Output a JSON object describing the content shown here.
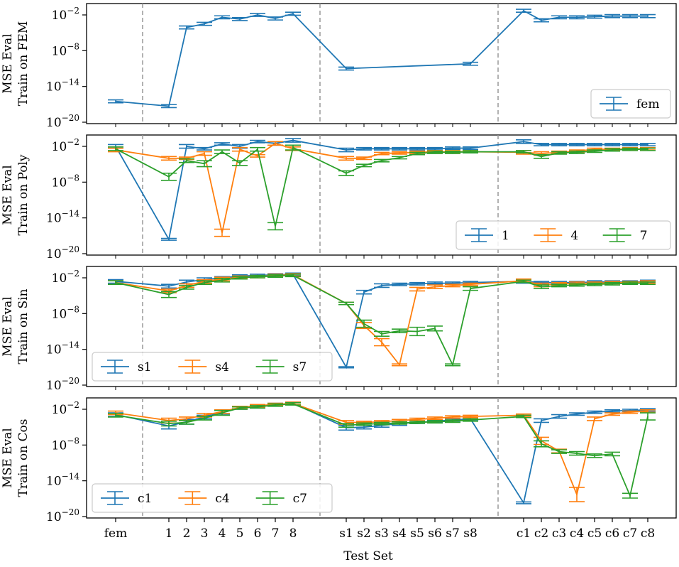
{
  "figure": {
    "xlabel": "Test Set",
    "categories": [
      "fem",
      "1",
      "2",
      "3",
      "4",
      "5",
      "6",
      "7",
      "8",
      "s1",
      "s2",
      "s3",
      "s4",
      "s5",
      "s6",
      "s7",
      "s8",
      "c1",
      "c2",
      "c3",
      "c4",
      "c5",
      "c6",
      "c7",
      "c8"
    ],
    "colors": {
      "blue": "#1f77b4",
      "orange": "#ff7f0e",
      "green": "#2ca02c",
      "divider": "#999999"
    }
  },
  "chart_data": [
    {
      "type": "line",
      "yscale": "log",
      "ylim_exp": [
        -20,
        0
      ],
      "ytick_exps": [
        -2,
        -8,
        -14,
        -20
      ],
      "ylabel_lines": [
        "MSE Eval",
        "Train on FEM"
      ],
      "legend_location": "lower-right",
      "legend_columns": 1,
      "series": [
        {
          "name": "fem",
          "color": "blue",
          "log10_values": [
            -16.5,
            null,
            null,
            null,
            null,
            null,
            null,
            null,
            null,
            -11.0,
            null,
            null,
            null,
            null,
            null,
            null,
            -10.2,
            -1.3,
            -2.9,
            -2.4,
            -2.4,
            -2.3,
            -2.2,
            -2.2,
            -2.2
          ],
          "log10_err": [
            0.15,
            null,
            null,
            null,
            null,
            null,
            null,
            null,
            null,
            0.1,
            null,
            null,
            null,
            null,
            null,
            null,
            0.1,
            0.3,
            0.6,
            0.4,
            0.3,
            0.2,
            0.2,
            0.2,
            0.2
          ],
          "custom_points": [
            [
              0,
              -16.5,
              0.15
            ],
            [
              2.65,
              -17.3,
              0.3
            ],
            [
              3.65,
              -4.1,
              0.2
            ],
            [
              4.65,
              -3.5,
              0.3
            ],
            [
              5.65,
              -2.4,
              0.2
            ],
            [
              6.65,
              -2.7,
              0.3
            ],
            [
              7.65,
              -2.0,
              0.2
            ],
            [
              8.65,
              -2.6,
              0.3
            ],
            [
              9.65,
              -1.8,
              0.2
            ]
          ],
          "x_offsets_note": "fem test-set positions"
        }
      ],
      "fem_values": {
        "fem": -16.5,
        "1": -17.3,
        "2": -4.1,
        "3": -3.5,
        "4": -2.4,
        "5": -2.7,
        "6": -2.0,
        "7": -2.6,
        "8": -1.8,
        "s1": -11.0,
        "s8": -10.2,
        "c1": -1.3,
        "c2": -2.9,
        "c3": -2.4,
        "c4": -2.4,
        "c5": -2.3,
        "c6": -2.2,
        "c7": -2.2,
        "c8": -2.2
      }
    },
    {
      "type": "line",
      "yscale": "log",
      "ylim_exp": [
        -20,
        0
      ],
      "ytick_exps": [
        -2,
        -8,
        -14,
        -20
      ],
      "ylabel_lines": [
        "MSE Eval",
        "Train on Poly"
      ],
      "legend_location": "lower-right",
      "legend_columns": 3,
      "series": [
        {
          "name": "1",
          "color": "blue",
          "values": [
            -2.0,
            -17.6,
            -2.0,
            -2.4,
            -1.6,
            -2.0,
            -1.2,
            -1.5,
            -1.0,
            -2.6,
            -2.4,
            -2.4,
            -2.4,
            -2.4,
            -2.4,
            -2.3,
            -2.3,
            -1.2,
            -1.7,
            -1.7,
            -1.7,
            -1.7,
            -1.7,
            -1.7,
            -1.7
          ],
          "err": [
            0.3,
            0.15,
            0.3,
            0.2,
            0.2,
            0.3,
            0.2,
            0.3,
            0.3,
            0.3,
            0.2,
            0.2,
            0.2,
            0.2,
            0.2,
            0.2,
            0.2,
            0.3,
            0.2,
            0.2,
            0.2,
            0.2,
            0.2,
            0.2,
            0.2
          ]
        },
        {
          "name": "4",
          "color": "orange",
          "values": [
            -2.6,
            -4.0,
            -4.0,
            -3.2,
            -16.5,
            -2.5,
            -3.6,
            -1.5,
            -2.4,
            -4.0,
            -4.0,
            -3.2,
            -3.1,
            -3.0,
            -2.9,
            -2.9,
            -2.9,
            -3.0,
            -3.2,
            -3.0,
            -2.8,
            -2.5,
            -2.5,
            -2.4,
            -2.4
          ],
          "err": [
            0.3,
            0.3,
            0.2,
            0.3,
            0.6,
            0.3,
            0.2,
            0.3,
            0.3,
            0.3,
            0.2,
            0.2,
            0.2,
            0.2,
            0.2,
            0.2,
            0.2,
            0.3,
            0.3,
            0.2,
            0.2,
            0.2,
            0.2,
            0.2,
            0.2
          ]
        },
        {
          "name": "7",
          "color": "green",
          "values": [
            -2.4,
            -7.1,
            -4.4,
            -4.9,
            -2.9,
            -4.8,
            -2.5,
            -15.4,
            -2.2,
            -6.5,
            -5.2,
            -4.4,
            -3.9,
            -3.2,
            -3.0,
            -3.0,
            -2.9,
            -2.9,
            -3.7,
            -3.1,
            -3.0,
            -2.8,
            -2.6,
            -2.5,
            -2.5
          ],
          "err": [
            0.3,
            0.6,
            0.3,
            0.5,
            0.3,
            0.4,
            0.3,
            0.6,
            0.4,
            0.4,
            0.2,
            0.2,
            0.2,
            0.2,
            0.2,
            0.2,
            0.2,
            0.2,
            0.3,
            0.2,
            0.2,
            0.2,
            0.2,
            0.2,
            0.2
          ]
        }
      ]
    },
    {
      "type": "line",
      "yscale": "log",
      "ylim_exp": [
        -20,
        0
      ],
      "ytick_exps": [
        -2,
        -8,
        -14,
        -20
      ],
      "ylabel_lines": [
        "MSE Eval",
        "Train on Sin"
      ],
      "legend_location": "lower-left",
      "legend_columns": 3,
      "series": [
        {
          "name": "s1",
          "color": "blue",
          "values": [
            -2.6,
            -3.4,
            -2.7,
            -2.3,
            -2.0,
            -1.7,
            -1.6,
            -1.5,
            -1.4,
            -17.0,
            -4.4,
            -3.3,
            -3.1,
            -3.0,
            -2.9,
            -2.9,
            -2.8,
            -2.6,
            -2.8,
            -2.8,
            -2.8,
            -2.7,
            -2.7,
            -2.7,
            -2.6
          ],
          "err": [
            0.3,
            0.3,
            0.3,
            0.3,
            0.2,
            0.2,
            0.2,
            0.2,
            0.2,
            0.1,
            0.3,
            0.3,
            0.2,
            0.2,
            0.2,
            0.2,
            0.2,
            0.3,
            0.2,
            0.2,
            0.2,
            0.2,
            0.2,
            0.2,
            0.2
          ]
        },
        {
          "name": "s4",
          "color": "orange",
          "values": [
            -2.8,
            -4.2,
            -3.3,
            -2.6,
            -2.2,
            -1.9,
            -1.8,
            -1.6,
            -1.5,
            -6.3,
            -10.0,
            -12.8,
            -16.6,
            -3.9,
            -3.5,
            -3.3,
            -3.1,
            -2.5,
            -3.2,
            -3.0,
            -2.9,
            -2.9,
            -2.8,
            -2.8,
            -2.7
          ],
          "err": [
            0.3,
            0.3,
            0.3,
            0.3,
            0.3,
            0.2,
            0.2,
            0.2,
            0.2,
            0.2,
            0.5,
            0.6,
            0.15,
            0.3,
            0.3,
            0.2,
            0.2,
            0.3,
            0.3,
            0.2,
            0.2,
            0.2,
            0.2,
            0.2,
            0.2
          ]
        },
        {
          "name": "s7",
          "color": "green",
          "values": [
            -2.8,
            -4.8,
            -3.6,
            -2.8,
            -2.4,
            -2.0,
            -1.8,
            -1.7,
            -1.6,
            -6.3,
            -9.7,
            -11.4,
            -10.9,
            -11.0,
            -10.5,
            -16.6,
            -3.8,
            -2.6,
            -3.5,
            -3.3,
            -3.2,
            -3.1,
            -3.0,
            -2.9,
            -2.9
          ],
          "err": [
            0.3,
            0.5,
            0.3,
            0.3,
            0.3,
            0.2,
            0.2,
            0.2,
            0.2,
            0.2,
            0.6,
            0.4,
            0.3,
            0.7,
            0.4,
            0.15,
            0.3,
            0.2,
            0.3,
            0.2,
            0.2,
            0.2,
            0.2,
            0.2,
            0.2
          ]
        }
      ]
    },
    {
      "type": "line",
      "yscale": "log",
      "ylim_exp": [
        -20,
        0
      ],
      "ytick_exps": [
        -2,
        -8,
        -14,
        -20
      ],
      "ylabel_lines": [
        "MSE Eval",
        "Train on Cos"
      ],
      "legend_location": "lower-left",
      "legend_columns": 3,
      "series": [
        {
          "name": "c1",
          "color": "blue",
          "values": [
            -2.9,
            -4.8,
            -4.1,
            -3.3,
            -2.5,
            -1.8,
            -1.5,
            -1.2,
            -1.0,
            -5.1,
            -5.0,
            -4.7,
            -4.4,
            -4.2,
            -4.0,
            -3.8,
            -3.6,
            -17.7,
            -3.9,
            -3.2,
            -2.8,
            -2.5,
            -2.3,
            -2.2,
            -2.1
          ],
          "err": [
            0.3,
            0.5,
            0.4,
            0.3,
            0.3,
            0.2,
            0.3,
            0.2,
            0.2,
            0.4,
            0.3,
            0.3,
            0.3,
            0.2,
            0.2,
            0.2,
            0.2,
            0.15,
            0.3,
            0.3,
            0.2,
            0.2,
            0.2,
            0.2,
            0.2
          ]
        },
        {
          "name": "c4",
          "color": "orange",
          "values": [
            -2.6,
            -3.9,
            -3.6,
            -3.0,
            -2.4,
            -1.7,
            -1.4,
            -1.2,
            -1.0,
            -4.2,
            -4.2,
            -4.1,
            -3.9,
            -3.7,
            -3.5,
            -3.3,
            -3.2,
            -3.0,
            -7.3,
            -9.0,
            -16.3,
            -3.6,
            -2.8,
            -2.5,
            -2.3
          ],
          "err": [
            0.3,
            0.4,
            0.3,
            0.3,
            0.3,
            0.2,
            0.2,
            0.2,
            0.2,
            0.3,
            0.2,
            0.2,
            0.2,
            0.2,
            0.2,
            0.2,
            0.2,
            0.2,
            0.6,
            0.3,
            1.2,
            0.3,
            0.2,
            0.2,
            0.2
          ]
        },
        {
          "name": "c7",
          "color": "green",
          "values": [
            -3.0,
            -4.4,
            -4.2,
            -3.5,
            -2.6,
            -1.8,
            -1.6,
            -1.3,
            -1.1,
            -4.7,
            -4.5,
            -4.4,
            -4.3,
            -4.2,
            -4.1,
            -4.0,
            -3.8,
            -3.2,
            -7.8,
            -9.1,
            -9.4,
            -9.8,
            -9.5,
            -16.5,
            -3.2
          ],
          "err": [
            0.3,
            0.4,
            0.3,
            0.3,
            0.4,
            0.2,
            0.2,
            0.2,
            0.2,
            0.3,
            0.2,
            0.2,
            0.2,
            0.2,
            0.2,
            0.2,
            0.2,
            0.2,
            0.5,
            0.3,
            0.3,
            0.3,
            0.3,
            0.4,
            0.6
          ]
        }
      ]
    }
  ]
}
